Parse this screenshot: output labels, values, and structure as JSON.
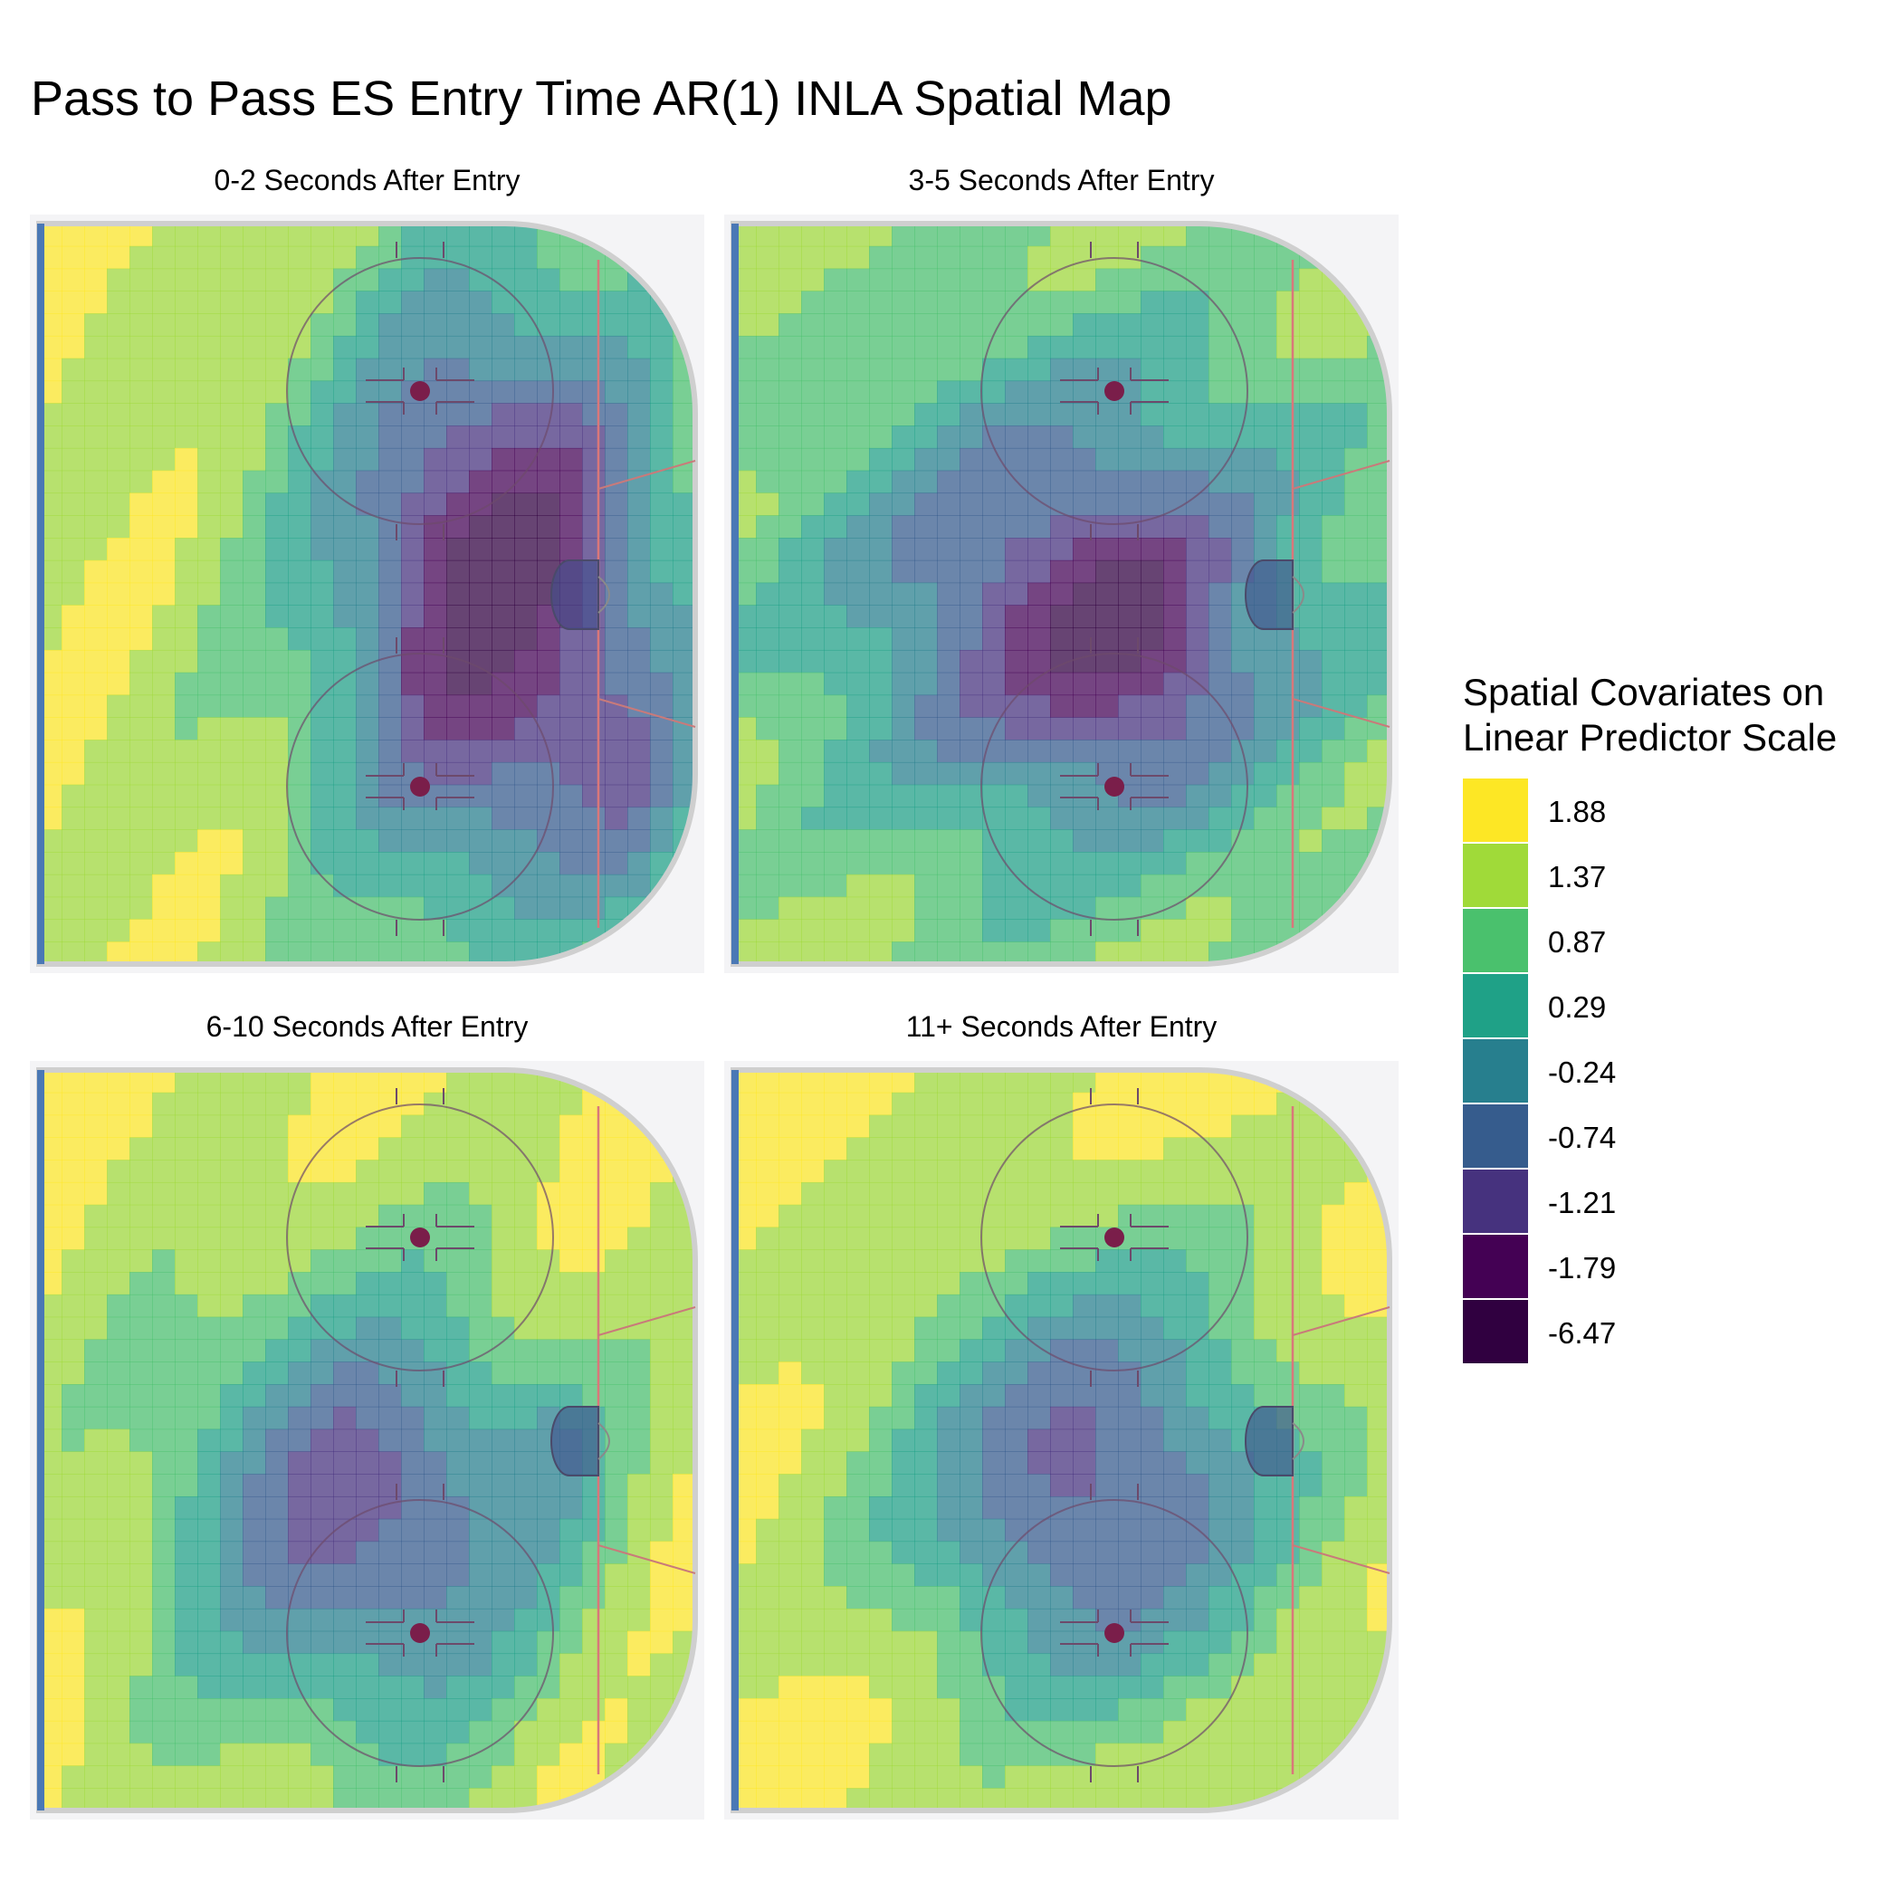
{
  "chart_data": {
    "type": "heatmap",
    "title": "Pass to Pass ES Entry Time AR(1) INLA Spatial Map",
    "legend": {
      "title_lines": [
        "Spatial Covariates on",
        "Linear Predictor Scale"
      ],
      "placement": "right",
      "levels": [
        {
          "label": "1.88",
          "value": 1.88,
          "color": "#FDE725"
        },
        {
          "label": "1.37",
          "value": 1.37,
          "color": "#A0DA39"
        },
        {
          "label": "0.87",
          "value": 0.87,
          "color": "#4AC16D"
        },
        {
          "label": "0.29",
          "value": 0.29,
          "color": "#1FA187"
        },
        {
          "label": "-0.24",
          "value": -0.24,
          "color": "#277F8E"
        },
        {
          "label": "-0.74",
          "value": -0.74,
          "color": "#365C8D"
        },
        {
          "label": "-1.21",
          "value": -1.21,
          "color": "#46327E"
        },
        {
          "label": "-1.79",
          "value": -1.79,
          "color": "#440154"
        },
        {
          "label": "-6.47",
          "value": -6.47,
          "color": "#300040"
        }
      ]
    },
    "panels": [
      {
        "title": "0-2 Seconds After Entry",
        "pattern": 0
      },
      {
        "title": "3-5 Seconds After Entry",
        "pattern": 1
      },
      {
        "title": "6-10 Seconds After Entry",
        "pattern": 2
      },
      {
        "title": "11+ Seconds After Entry",
        "pattern": 3
      }
    ],
    "grid": false
  }
}
